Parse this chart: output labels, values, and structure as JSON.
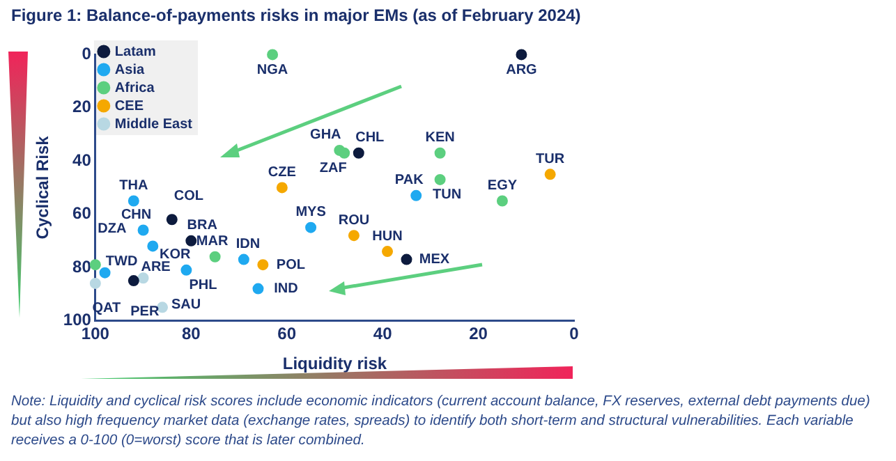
{
  "chart_data": {
    "type": "scatter",
    "title": "Figure 1: Balance-of-payments risks in major EMs (as of February 2024)",
    "xlabel": "Liquidity risk",
    "ylabel": "Cyclical Risk",
    "xlim": [
      100,
      0
    ],
    "xticks": [
      100,
      80,
      60,
      40,
      20,
      0
    ],
    "ylim": [
      100,
      0
    ],
    "yticks": [
      0,
      20,
      40,
      60,
      80,
      100
    ],
    "grid": false,
    "legend": "top left",
    "marker": "circle",
    "series": [
      {
        "name": "Latam",
        "color": "#0d1b3e",
        "x": [
          11,
          45,
          84,
          80,
          92,
          35
        ],
        "values": [
          0,
          37,
          62,
          70,
          85,
          77
        ]
      },
      {
        "name": "Asia",
        "color": "#1fa9f0",
        "x": [
          33,
          55,
          69,
          66,
          81,
          92,
          90,
          88,
          98
        ],
        "values": [
          53,
          65,
          77,
          88,
          81,
          55,
          66,
          72,
          82
        ]
      },
      {
        "name": "Africa",
        "color": "#5ccf7f",
        "x": [
          63,
          49,
          48,
          28,
          28,
          15,
          75,
          100
        ],
        "values": [
          0,
          36,
          37,
          37,
          47,
          55,
          76,
          79
        ]
      },
      {
        "name": "CEE",
        "color": "#f5a800",
        "x": [
          5,
          61,
          46,
          39,
          65
        ],
        "values": [
          45,
          50,
          68,
          74,
          79
        ]
      },
      {
        "name": "Middle East",
        "color": "#b8d8e3",
        "x": [
          90,
          100,
          86
        ],
        "values": [
          84,
          86,
          95
        ]
      }
    ],
    "annotations": [
      {
        "text": "ARG",
        "x": 11,
        "y": 0
      },
      {
        "text": "CHL",
        "x": 45,
        "y": 37
      },
      {
        "text": "COL",
        "x": 84,
        "y": 62
      },
      {
        "text": "BRA",
        "x": 80,
        "y": 70
      },
      {
        "text": "PER",
        "x": 92,
        "y": 85
      },
      {
        "text": "MEX",
        "x": 35,
        "y": 77
      },
      {
        "text": "PAK",
        "x": 33,
        "y": 53
      },
      {
        "text": "MYS",
        "x": 55,
        "y": 65
      },
      {
        "text": "IDN",
        "x": 69,
        "y": 77
      },
      {
        "text": "IND",
        "x": 66,
        "y": 88
      },
      {
        "text": "PHL",
        "x": 81,
        "y": 81
      },
      {
        "text": "THA",
        "x": 92,
        "y": 55
      },
      {
        "text": "CHN",
        "x": 90,
        "y": 66
      },
      {
        "text": "KOR",
        "x": 88,
        "y": 72
      },
      {
        "text": "TWD",
        "x": 98,
        "y": 82
      },
      {
        "text": "NGA",
        "x": 63,
        "y": 0
      },
      {
        "text": "GHA",
        "x": 49,
        "y": 36
      },
      {
        "text": "ZAF",
        "x": 48,
        "y": 37
      },
      {
        "text": "KEN",
        "x": 28,
        "y": 37
      },
      {
        "text": "TUN",
        "x": 28,
        "y": 47
      },
      {
        "text": "EGY",
        "x": 15,
        "y": 55
      },
      {
        "text": "MAR",
        "x": 75,
        "y": 76
      },
      {
        "text": "DZA",
        "x": 100,
        "y": 79
      },
      {
        "text": "TUR",
        "x": 5,
        "y": 45
      },
      {
        "text": "CZE",
        "x": 61,
        "y": 50
      },
      {
        "text": "ROU",
        "x": 46,
        "y": 68
      },
      {
        "text": "HUN",
        "x": 39,
        "y": 74
      },
      {
        "text": "POL",
        "x": 65,
        "y": 79
      },
      {
        "text": "ARE",
        "x": 90,
        "y": 84
      },
      {
        "text": "QAT",
        "x": 100,
        "y": 86
      },
      {
        "text": "SAU",
        "x": 86,
        "y": 95
      },
      "Note: Liquidity and cyclical risk scores include economic indicators (current account balance, FX reserves, external debt payments due) but also high frequency market data (exchange rates, spreads) to identify both short-term and structural vulnerabilities. Each variable receives a 0-100 (0=worst) score that is later combined."
    ]
  }
}
